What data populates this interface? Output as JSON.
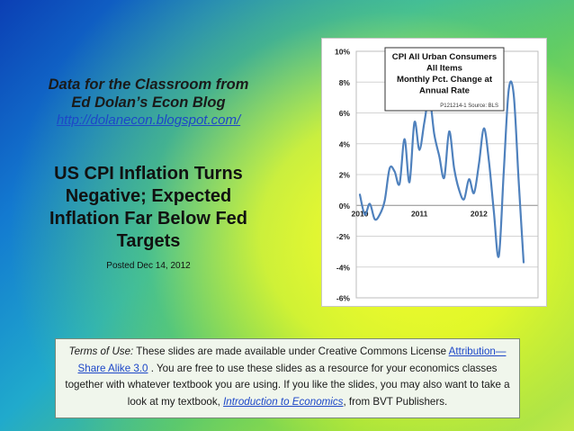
{
  "slide": {
    "subtitle_line1": "Data for the Classroom from",
    "subtitle_line2": "Ed Dolan’s Econ Blog",
    "blog_url": "http://dolanecon.blogspot.com/",
    "headline_line1": "US CPI Inflation Turns",
    "headline_line2": "Negative; Expected",
    "headline_line3": "Inflation Far Below Fed",
    "headline_line4": "Targets",
    "posted": "Posted  Dec 14, 2012"
  },
  "terms": {
    "label": "Terms of Use:",
    "text1": " These slides are made available under Creative Commons License ",
    "license_link": "Attribution—Share Alike 3.0",
    "text2": " . You are free to use these slides as a resource for your economics classes together with whatever textbook you are using. If you like the slides, you may also want to take a look at my textbook, ",
    "book_link": "Introduction to Economics",
    "text3": ", from BVT Publishers."
  },
  "chart_data": {
    "type": "line",
    "title_lines": [
      "CPI All Urban Consumers",
      "All Items",
      "Monthly Pct. Change at",
      "Annual Rate"
    ],
    "source": "P121214-1 Source: BLS",
    "ylim": [
      -6,
      10
    ],
    "yticks": [
      -6,
      -4,
      -2,
      0,
      2,
      4,
      6,
      8,
      10
    ],
    "ytick_labels": [
      "-6%",
      "-4%",
      "-2%",
      "0%",
      "2%",
      "4%",
      "6%",
      "8%",
      "10%"
    ],
    "xtick_labels": [
      {
        "label": "2010",
        "index": 0
      },
      {
        "label": "2011",
        "index": 12
      },
      {
        "label": "2012",
        "index": 24
      }
    ],
    "grid": true,
    "line_color": "#4f81bd",
    "series": [
      {
        "values": [
          0.7,
          -0.6,
          0.1,
          -0.9,
          -0.6,
          0.3,
          2.4,
          2.2,
          1.4,
          4.3,
          1.5,
          5.4,
          3.6,
          5.4,
          7.0,
          4.6,
          3.2,
          1.8,
          4.8,
          2.4,
          1.0,
          0.4,
          1.7,
          0.8,
          2.7,
          5.0,
          2.9,
          -0.4,
          -3.3,
          2.2,
          7.5,
          7.2,
          1.6,
          -3.7
        ]
      }
    ]
  }
}
